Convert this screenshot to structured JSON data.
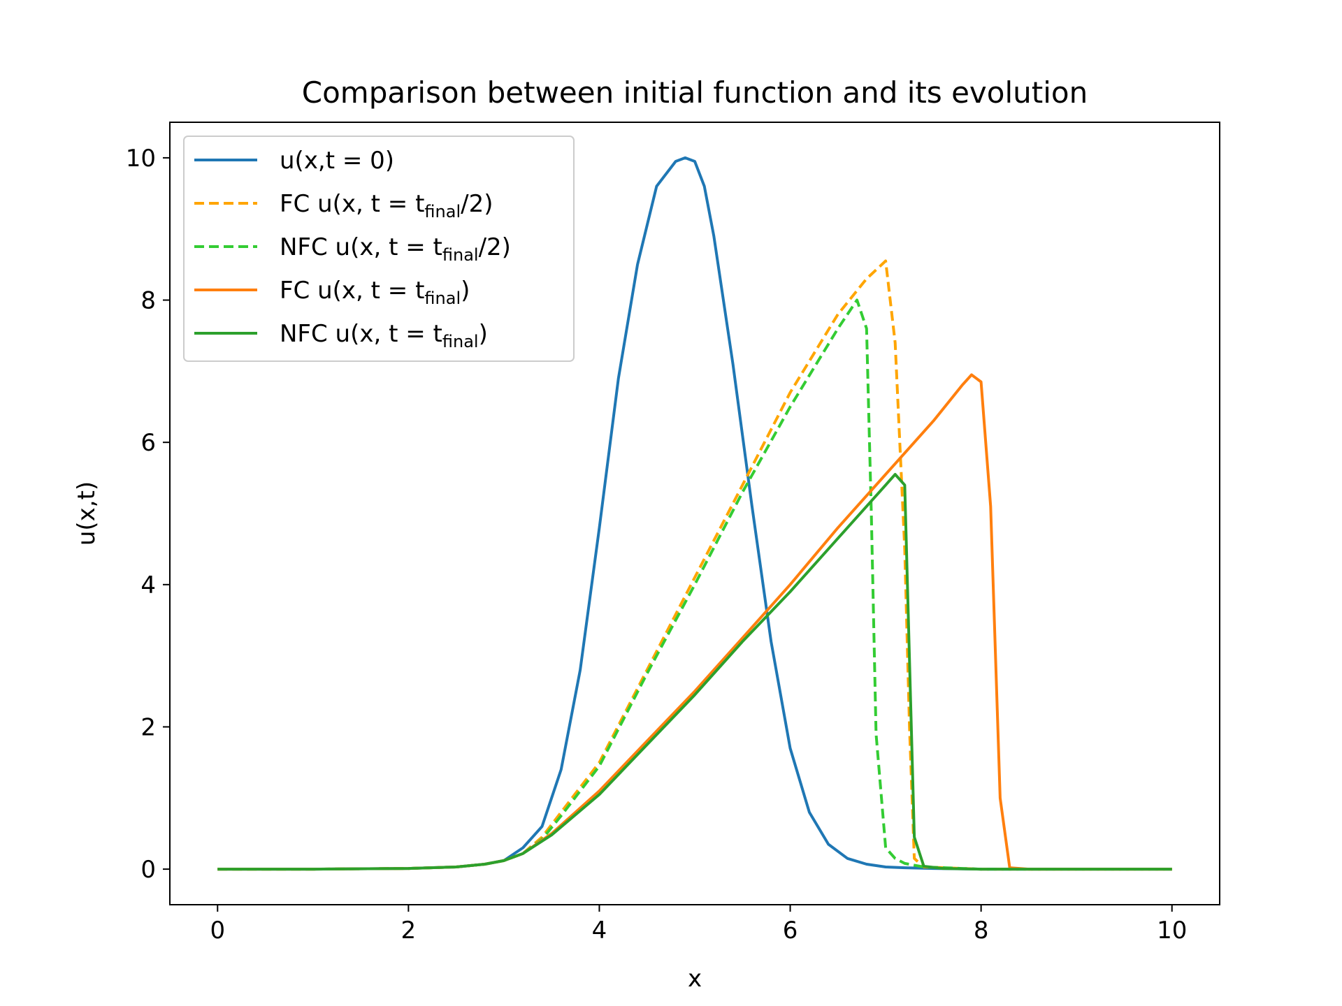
{
  "chart_data": {
    "type": "line",
    "title": "Comparison between initial function and its evolution",
    "xlabel": "x",
    "ylabel": "u(x,t)",
    "xlim": [
      -0.5,
      10.5
    ],
    "ylim": [
      -0.5,
      10.5
    ],
    "xticks": [
      0,
      2,
      4,
      6,
      8,
      10
    ],
    "yticks": [
      0,
      2,
      4,
      6,
      8,
      10
    ],
    "grid": false,
    "legend_position": "top-left",
    "series": [
      {
        "name": "u(x,t = 0)",
        "legend": {
          "prefix": "u(x,t = 0)",
          "sub": "",
          "suffix": ""
        },
        "color": "#1f77b4",
        "dash": "solid",
        "x": [
          0,
          1,
          2,
          2.5,
          2.8,
          3.0,
          3.2,
          3.4,
          3.6,
          3.8,
          4.0,
          4.2,
          4.4,
          4.6,
          4.8,
          4.9,
          5.0,
          5.1,
          5.2,
          5.4,
          5.6,
          5.8,
          6.0,
          6.2,
          6.4,
          6.6,
          6.8,
          7.0,
          7.2,
          7.5,
          8,
          9,
          10
        ],
        "y": [
          0,
          0,
          0.01,
          0.03,
          0.07,
          0.12,
          0.3,
          0.6,
          1.4,
          2.8,
          4.8,
          6.9,
          8.5,
          9.6,
          9.95,
          10,
          9.95,
          9.6,
          8.9,
          7.1,
          5.1,
          3.2,
          1.7,
          0.8,
          0.35,
          0.15,
          0.07,
          0.03,
          0.02,
          0.01,
          0,
          0,
          0
        ]
      },
      {
        "name": "FC u(x, t = tfinal/2)",
        "legend": {
          "prefix": "FC u(x, t = t",
          "sub": "final",
          "suffix": "/2)"
        },
        "color": "#ffa500",
        "dash": "dashed",
        "x": [
          0,
          1,
          2,
          2.5,
          2.8,
          3.0,
          3.2,
          3.4,
          3.6,
          4.0,
          4.5,
          5.0,
          5.5,
          6.0,
          6.5,
          6.8,
          7.0,
          7.1,
          7.2,
          7.25,
          7.3,
          7.4,
          8,
          9,
          10
        ],
        "y": [
          0,
          0,
          0.01,
          0.03,
          0.07,
          0.12,
          0.22,
          0.45,
          0.8,
          1.5,
          2.8,
          4.1,
          5.4,
          6.7,
          7.8,
          8.3,
          8.55,
          7.4,
          4.5,
          2.0,
          0.15,
          0.03,
          0,
          0,
          0
        ]
      },
      {
        "name": "NFC u(x, t = tfinal/2)",
        "legend": {
          "prefix": "NFC u(x, t = t",
          "sub": "final",
          "suffix": "/2)"
        },
        "color": "#33cc33",
        "dash": "dashed",
        "x": [
          0,
          1,
          2,
          2.5,
          2.8,
          3.0,
          3.2,
          3.4,
          3.6,
          4.0,
          4.5,
          5.0,
          5.5,
          6.0,
          6.5,
          6.7,
          6.8,
          6.85,
          6.9,
          7.0,
          7.1,
          7.2,
          7.4,
          8,
          9,
          10
        ],
        "y": [
          0,
          0,
          0.01,
          0.03,
          0.07,
          0.12,
          0.22,
          0.42,
          0.75,
          1.45,
          2.75,
          4.0,
          5.3,
          6.5,
          7.6,
          8.0,
          7.6,
          5.0,
          1.9,
          0.3,
          0.15,
          0.08,
          0.03,
          0,
          0,
          0
        ]
      },
      {
        "name": "FC u(x, t = tfinal)",
        "legend": {
          "prefix": "FC u(x, t = t",
          "sub": "final",
          "suffix": ")"
        },
        "color": "#ff7f0e",
        "dash": "solid",
        "x": [
          0,
          1,
          2,
          2.5,
          2.8,
          3.0,
          3.2,
          3.5,
          4.0,
          4.5,
          5.0,
          5.5,
          6.0,
          6.5,
          7.0,
          7.5,
          7.8,
          7.9,
          8.0,
          8.1,
          8.2,
          8.3,
          8.5,
          9,
          10
        ],
        "y": [
          0,
          0,
          0.01,
          0.03,
          0.07,
          0.12,
          0.22,
          0.5,
          1.1,
          1.8,
          2.5,
          3.25,
          4.0,
          4.8,
          5.55,
          6.3,
          6.8,
          6.95,
          6.85,
          5.1,
          1.0,
          0.02,
          0,
          0,
          0
        ]
      },
      {
        "name": "NFC u(x, t = tfinal)",
        "legend": {
          "prefix": "NFC u(x, t = t",
          "sub": "final",
          "suffix": ")"
        },
        "color": "#2ca02c",
        "dash": "solid",
        "x": [
          0,
          1,
          2,
          2.5,
          2.8,
          3.0,
          3.2,
          3.5,
          4.0,
          4.5,
          5.0,
          5.5,
          6.0,
          6.5,
          6.8,
          7.0,
          7.1,
          7.2,
          7.3,
          7.4,
          7.6,
          8,
          9,
          10
        ],
        "y": [
          0,
          0,
          0.01,
          0.03,
          0.07,
          0.12,
          0.22,
          0.48,
          1.05,
          1.75,
          2.45,
          3.2,
          3.9,
          4.65,
          5.1,
          5.4,
          5.55,
          5.4,
          0.45,
          0.04,
          0.01,
          0,
          0,
          0
        ]
      }
    ]
  }
}
